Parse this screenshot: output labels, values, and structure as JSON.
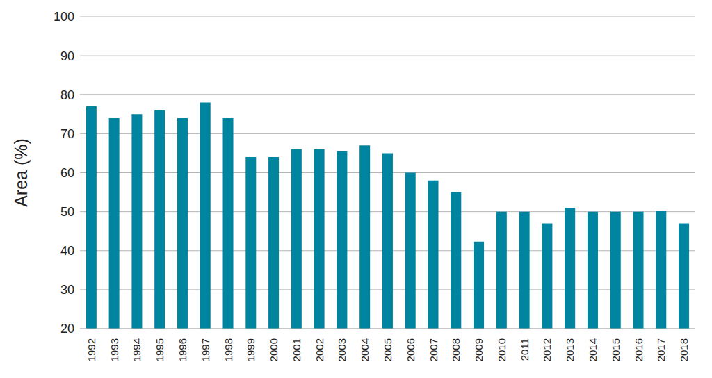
{
  "chart_data": {
    "type": "bar",
    "y_label": "Area (%)",
    "categories": [
      "1992",
      "1993",
      "1994",
      "1995",
      "1996",
      "1997",
      "1998",
      "1999",
      "2000",
      "2001",
      "2002",
      "2003",
      "2004",
      "2005",
      "2006",
      "2007",
      "2008",
      "2009",
      "2010",
      "2011",
      "2012",
      "2013",
      "2014",
      "2015",
      "2016",
      "2017",
      "2018"
    ],
    "values": [
      77,
      74,
      75,
      76,
      74,
      78,
      74,
      64,
      64,
      66,
      66,
      65.5,
      67,
      65,
      60,
      58,
      55,
      42.3,
      50,
      50,
      47,
      51,
      50,
      50,
      50,
      50.2,
      47
    ],
    "color": "#0085a1",
    "ylim": [
      20,
      100
    ],
    "yticks": [
      20,
      30,
      40,
      50,
      60,
      70,
      80,
      90,
      100
    ],
    "grid": true
  }
}
